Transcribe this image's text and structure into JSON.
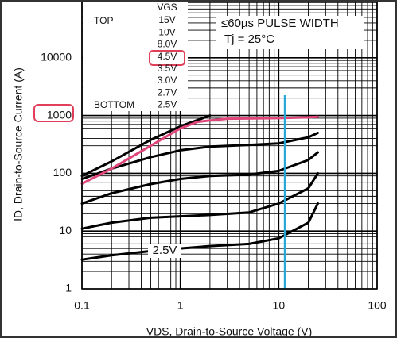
{
  "chart_data": {
    "type": "line",
    "log_x": true,
    "log_y": true,
    "grid": true,
    "x_label": "VDS, Drain-to-Source Voltage (V)",
    "y_label": "ID, Drain-to-Source Current (A)",
    "xlim": [
      0.1,
      100
    ],
    "ylim": [
      1,
      100000
    ],
    "xticks": [
      0.1,
      1,
      10,
      100
    ],
    "yticks": [
      1,
      10,
      100,
      1000,
      10000
    ],
    "legend_title": "VGS",
    "legend_top": "TOP",
    "legend_bottom": "BOTTOM",
    "legend_values": [
      "15V",
      "10V",
      "8.0V",
      "4.5V",
      "3.5V",
      "3.0V",
      "2.7V",
      "2.5V"
    ],
    "annotations": [
      "≤60µs PULSE WIDTH",
      "Tj = 25°C"
    ],
    "curve_label": "2.5V",
    "vline": {
      "x": 11.6,
      "color": "#29a8d8"
    },
    "highlight_color": "#e0405a",
    "series": [
      {
        "color": "#000000",
        "x": [
          0.1,
          0.2,
          0.5,
          1,
          2
        ],
        "values": [
          90,
          160,
          380,
          650,
          1000
        ]
      },
      {
        "color": "#000000",
        "x": [
          0.1,
          0.2,
          0.5,
          1,
          2,
          5,
          10,
          20,
          25
        ],
        "values": [
          80,
          120,
          190,
          250,
          290,
          310,
          330,
          420,
          500
        ]
      },
      {
        "color": "#000000",
        "x": [
          0.1,
          0.2,
          0.5,
          1,
          2,
          5,
          10,
          20,
          25
        ],
        "values": [
          30,
          45,
          65,
          80,
          90,
          95,
          110,
          170,
          230
        ]
      },
      {
        "color": "#000000",
        "x": [
          0.1,
          0.2,
          0.5,
          1,
          2,
          5,
          10,
          20,
          25
        ],
        "values": [
          11,
          14,
          17,
          18,
          19,
          21,
          30,
          55,
          100
        ]
      },
      {
        "color": "#000000",
        "x": [
          0.1,
          0.2,
          0.5,
          1,
          2,
          5,
          10,
          20,
          25
        ],
        "values": [
          3.2,
          3.8,
          4.5,
          5,
          5.5,
          6,
          7.5,
          14,
          30
        ]
      },
      {
        "color": "#e0457b",
        "x": [
          0.1,
          0.2,
          0.5,
          1,
          1.5,
          3,
          10,
          20,
          25
        ],
        "values": [
          66,
          120,
          300,
          600,
          780,
          880,
          900,
          930,
          950
        ]
      }
    ]
  }
}
